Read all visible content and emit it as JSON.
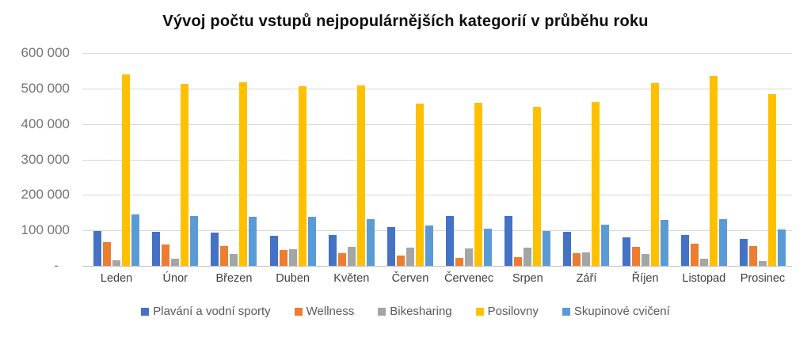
{
  "chart_data": {
    "type": "bar",
    "title": "Vývoj počtu vstupů nejpopulárnějších kategorií v průběhu roku",
    "categories": [
      "Leden",
      "Únor",
      "Březen",
      "Duben",
      "Květen",
      "Červen",
      "Červenec",
      "Srpen",
      "Září",
      "Říjen",
      "Listopad",
      "Prosinec"
    ],
    "series": [
      {
        "name": "Plavání a vodní sporty",
        "color": "#4472C4",
        "values": [
          98000,
          95000,
          94000,
          85000,
          88000,
          110000,
          140000,
          141000,
          97000,
          81000,
          87000,
          75000
        ]
      },
      {
        "name": "Wellness",
        "color": "#ED7D31",
        "values": [
          68000,
          61000,
          56000,
          44000,
          36000,
          29000,
          22000,
          24000,
          35000,
          53000,
          62000,
          55000
        ]
      },
      {
        "name": "Bikesharing",
        "color": "#A5A5A5",
        "values": [
          15000,
          21000,
          34000,
          46000,
          54000,
          51000,
          50000,
          52000,
          38000,
          33000,
          21000,
          13000
        ]
      },
      {
        "name": "Posilovny",
        "color": "#FFC000",
        "values": [
          540000,
          512000,
          518000,
          507000,
          508000,
          457000,
          460000,
          448000,
          462000,
          516000,
          536000,
          485000
        ]
      },
      {
        "name": "Skupinové cvičení",
        "color": "#5B9BD5",
        "values": [
          146000,
          140000,
          138000,
          138000,
          132000,
          113000,
          104000,
          98000,
          116000,
          130000,
          131000,
          102000
        ]
      }
    ],
    "y_axis": {
      "min": 0,
      "max": 600000,
      "step": 100000,
      "tick_labels_bottom_up": [
        "-",
        "100 000",
        "200 000",
        "300 000",
        "400 000",
        "500 000",
        "600 000"
      ]
    },
    "grid": true,
    "legend_position": "bottom",
    "colors": {
      "gridline": "#d9d9d9",
      "axis_line": "#bfbfbf",
      "y_label_text": "#757575",
      "x_label_text": "#3f3f3f",
      "legend_text": "#595959",
      "title_text": "#0d0d0d",
      "background": "#ffffff"
    }
  }
}
